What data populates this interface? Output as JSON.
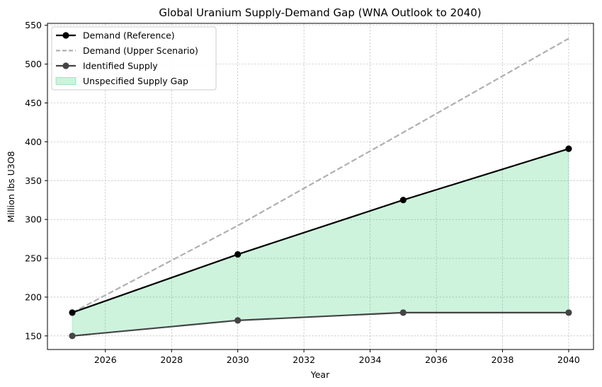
{
  "chart_data": {
    "type": "line",
    "title": "Global Uranium Supply-Demand Gap (WNA Outlook to 2040)",
    "xlabel": "Year",
    "ylabel": "Million lbs U3O8",
    "xlim": [
      2024.25,
      2040.75
    ],
    "ylim": [
      132.5,
      552.5
    ],
    "xticks": [
      2026,
      2028,
      2030,
      2032,
      2034,
      2036,
      2038,
      2040
    ],
    "yticks": [
      150,
      200,
      250,
      300,
      350,
      400,
      450,
      500,
      550
    ],
    "grid": true,
    "legend_position": "upper-left",
    "x": [
      2025,
      2030,
      2035,
      2040
    ],
    "series": [
      {
        "name": "Demand (Reference)",
        "values": [
          180,
          255,
          325,
          391
        ],
        "color": "#000000",
        "style": "solid",
        "marker": true
      },
      {
        "name": "Demand (Upper Scenario)",
        "values": [
          180,
          292,
          412,
          533
        ],
        "color": "#b0b0b0",
        "style": "dashed",
        "marker": false
      },
      {
        "name": "Identified Supply",
        "values": [
          150,
          170,
          180,
          180
        ],
        "color": "#444444",
        "style": "solid",
        "marker": true
      }
    ],
    "fill": {
      "name": "Unspecified Supply Gap",
      "between": [
        "Identified Supply",
        "Demand (Reference)"
      ],
      "color": "#2ecc71",
      "alpha": 0.24
    }
  }
}
